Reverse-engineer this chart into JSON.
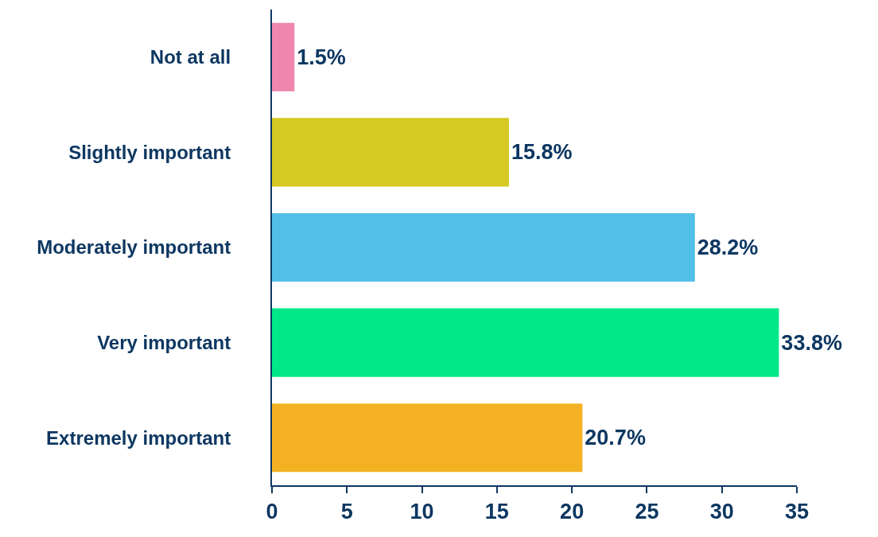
{
  "chart_data": {
    "type": "bar",
    "orientation": "horizontal",
    "categories": [
      "Not at all",
      "Slightly important",
      "Moderately important",
      "Very important",
      "Extremely important"
    ],
    "values": [
      1.5,
      15.8,
      28.2,
      33.8,
      20.7
    ],
    "colors": [
      "#ee86ad",
      "#d6c923",
      "#52bfe8",
      "#00e887",
      "#f4b223"
    ],
    "value_labels": [
      "1.5%",
      "15.8%",
      "28.2%",
      "33.8%",
      "20.7%"
    ],
    "xlim": [
      0,
      35
    ],
    "xticks": [
      0,
      5,
      10,
      15,
      20,
      25,
      30,
      35
    ],
    "grid": false
  }
}
